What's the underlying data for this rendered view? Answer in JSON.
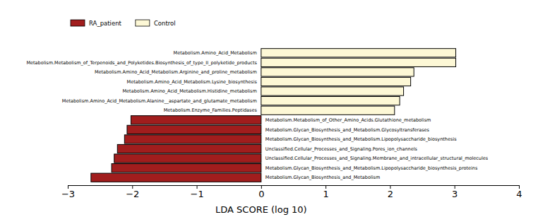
{
  "chart_data": {
    "type": "bar",
    "orientation": "horizontal",
    "x_label": "LDA SCORE (log 10)",
    "legend": "upper left",
    "categories": [
      "Metabolism.Amino_Acid_Metabolism",
      "Metabolism.Metabolism_of_Terpenoids_and_Polyketides.Biosynthesis_of_type_II_polyketide_products",
      "Metabolism.Amino_Acid_Metabolism.Arginine_and_proline_metabolism",
      "Metabolism.Amino_Acid_Metabolism.Lysine_biosynthesis",
      "Metabolism.Amino_Acid_Metabolism.Histidine_metabolism",
      "Metabolism.Amino_Acid_Metabolism.Alanine__aspartate_and_glutamate_metabolism",
      "Metabolism.Enzyme_Families.Peptidases",
      "Metabolism.Metabolism_of_Other_Amino_Acids.Glutathione_metabolism",
      "Metabolism.Glycan_Biosynthesis_and_Metabolism.Glycosyltransferases",
      "Metabolism.Glycan_Biosynthesis_and_Metabolism.Lipopolysaccharide_biosynthesis",
      "Unclassified.Cellular_Processes_and_Signaling.Pores_ion_channels",
      "Unclassified.Cellular_Processes_and_Signaling.Membrane_and_intracellular_structural_molecules",
      "Metabolism.Glycan_Biosynthesis_and_Metabolism.Lipopolysaccharide_biosynthesis_proteins",
      "Metabolism.Glycan_Biosynthesis_and_Metabolism"
    ],
    "series": [
      {
        "name": "RA_patient",
        "color": "#a11d1d",
        "values": [
          null,
          null,
          null,
          null,
          null,
          null,
          null,
          -2.02,
          -2.08,
          -2.12,
          -2.23,
          -2.28,
          -2.32,
          -2.64
        ]
      },
      {
        "name": "Control",
        "color": "#fdf8d6",
        "values": [
          3.02,
          3.02,
          2.37,
          2.32,
          2.21,
          2.15,
          2.07,
          null,
          null,
          null,
          null,
          null,
          null,
          null
        ]
      }
    ],
    "xlim": [
      -3,
      4
    ],
    "xticks": [
      {
        "value": -3,
        "label": "−3"
      },
      {
        "value": -2,
        "label": "−2"
      },
      {
        "value": -1,
        "label": "−1"
      },
      0,
      1,
      2,
      3,
      4
    ]
  }
}
